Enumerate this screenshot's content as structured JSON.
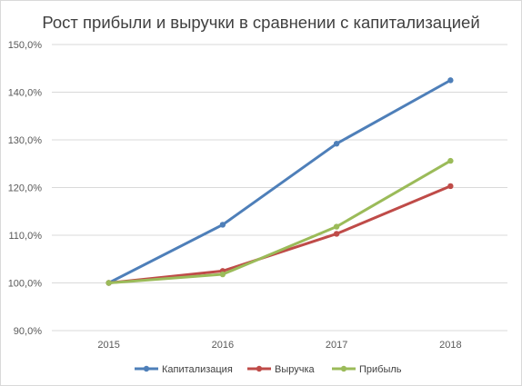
{
  "chart_data": {
    "type": "line",
    "title": "Рост прибыли и выручки в сравнении с капитализацией",
    "categories": [
      "2015",
      "2016",
      "2017",
      "2018"
    ],
    "y_tick_labels": [
      "150,0%",
      "140,0%",
      "130,0%",
      "120,0%",
      "110,0%",
      "100,0%",
      "90,0%"
    ],
    "ylim": [
      90,
      150
    ],
    "y_unit": "%",
    "grid": true,
    "legend_position": "bottom",
    "series": [
      {
        "name": "Капитализация",
        "color": "#4e7fb9",
        "values": [
          100.0,
          112.2,
          129.2,
          142.5
        ]
      },
      {
        "name": "Выручка",
        "color": "#bf4b48",
        "values": [
          100.0,
          102.5,
          110.3,
          120.3
        ]
      },
      {
        "name": "Прибыль",
        "color": "#9bbb59",
        "values": [
          100.0,
          101.8,
          111.8,
          125.6
        ]
      }
    ]
  }
}
